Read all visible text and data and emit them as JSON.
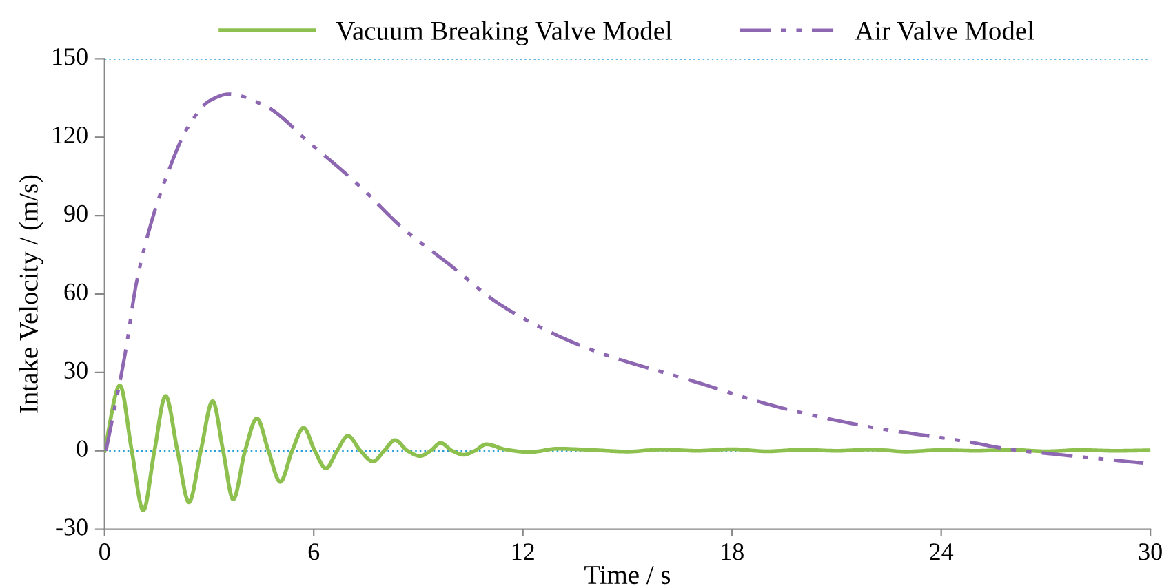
{
  "chart_data": {
    "type": "line",
    "xlabel": "Time / s",
    "ylabel": "Intake Velocity / (m/s)",
    "xlim": [
      0,
      30
    ],
    "xticks": [
      0,
      6,
      12,
      18,
      24,
      30
    ],
    "ylim": [
      -30,
      150
    ],
    "yticks": [
      -30,
      0,
      30,
      60,
      90,
      120,
      150
    ],
    "grid": false,
    "legend": "top",
    "marker": "none",
    "ref_lines": [
      {
        "axis": "y",
        "value": 0,
        "color": "#2a9fd6",
        "line_style": "dotted"
      },
      {
        "axis": "y",
        "value": 150,
        "color": "#2a9fd6",
        "line_style": "dotted"
      }
    ],
    "series": [
      {
        "name": "Vacuum Breaking Valve Model",
        "color": "#8dc04f",
        "line_style": "solid",
        "x": [
          0,
          0.44,
          0.78,
          1.11,
          1.43,
          1.75,
          2.09,
          2.42,
          2.76,
          3.1,
          3.4,
          3.69,
          4.03,
          4.37,
          4.7,
          5.04,
          5.38,
          5.71,
          6.03,
          6.35,
          6.67,
          6.98,
          7.34,
          7.7,
          8.02,
          8.33,
          8.69,
          9.05,
          9.35,
          9.64,
          9.97,
          10.3,
          10.62,
          10.95,
          11.5,
          12.2,
          13,
          14,
          15,
          16,
          17,
          18,
          19,
          20,
          21,
          22,
          23,
          24,
          25,
          26,
          27,
          28,
          29,
          30
        ],
        "values": [
          0,
          25,
          0,
          -22.8,
          0,
          21,
          0,
          -19.7,
          0,
          19,
          0,
          -18.6,
          0,
          12.4,
          0,
          -11.9,
          0,
          8.8,
          0,
          -6.7,
          0,
          5.7,
          0,
          -4.1,
          0,
          4.1,
          0,
          -2,
          0,
          3,
          0,
          -1.5,
          0,
          2.5,
          0.5,
          -0.5,
          0.8,
          0.3,
          -0.3,
          0.5,
          0,
          0.6,
          -0.2,
          0.4,
          0,
          0.5,
          -0.3,
          0.3,
          0,
          0.4,
          -0.2,
          0.3,
          0,
          0.2
        ]
      },
      {
        "name": "Air Valve Model",
        "color": "#8e67b3",
        "line_style": "dashed",
        "x": [
          0.04,
          0.6,
          0.91,
          1.31,
          1.79,
          2.38,
          3.02,
          3.57,
          4.6,
          5.95,
          7.26,
          8.57,
          9.92,
          11.23,
          12.54,
          14.1,
          16.8,
          19.4,
          22.1,
          24.7,
          26.0,
          27.4,
          29.8
        ],
        "values": [
          0,
          38,
          64,
          86,
          105.5,
          123.6,
          134,
          136.5,
          132,
          117,
          102,
          85,
          71,
          57,
          47,
          38,
          27,
          16.5,
          8.8,
          3.6,
          0.5,
          -1.5,
          -4.7
        ]
      }
    ]
  }
}
